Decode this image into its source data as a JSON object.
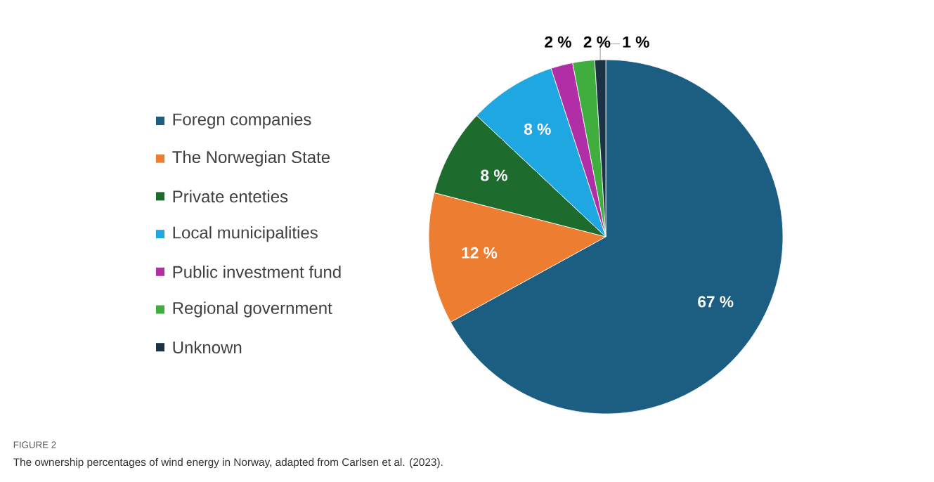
{
  "chart_data": {
    "type": "pie",
    "categories": [
      "Foregn companies",
      "The Norwegian State",
      "Private enteties",
      "Local municipalities",
      "Public investment fund",
      "Regional government",
      "Unknown"
    ],
    "values": [
      67,
      12,
      8,
      8,
      2,
      2,
      1
    ],
    "colors": [
      "#1b5e82",
      "#ed7d31",
      "#1e6b2e",
      "#1ea7e1",
      "#b12fa6",
      "#3fae3f",
      "#1c3346"
    ],
    "value_labels": [
      "67 %",
      "12 %",
      "8 %",
      "8 %",
      "2 %",
      "2 %",
      "1 %"
    ],
    "legend": "left",
    "annotations": [
      "FIGURE 2",
      "The ownership percentages of wind energy in Norway, adapted from Carlsen et al. (2023)."
    ]
  }
}
